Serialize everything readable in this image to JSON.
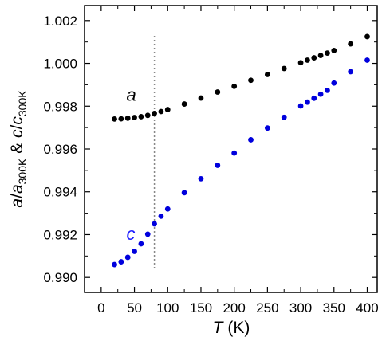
{
  "chart_data": {
    "type": "scatter",
    "xlabel": {
      "var": "T",
      "unit": " (K)"
    },
    "ylabel": {
      "parts": [
        {
          "t": "a",
          "italic": true
        },
        {
          "t": "/"
        },
        {
          "t": "a",
          "italic": true
        },
        {
          "t": "300K",
          "sub": true
        },
        {
          "t": " & "
        },
        {
          "t": "c",
          "italic": true
        },
        {
          "t": "/"
        },
        {
          "t": "c",
          "italic": true
        },
        {
          "t": "300K",
          "sub": true
        }
      ]
    },
    "xlim": [
      -25,
      415
    ],
    "ylim": [
      0.9893,
      1.0027
    ],
    "xticks": [
      0,
      50,
      100,
      150,
      200,
      250,
      300,
      350,
      400
    ],
    "yticks": [
      "0.990",
      "0.992",
      "0.994",
      "0.996",
      "0.998",
      "1.000",
      "1.002"
    ],
    "grid": false,
    "reference_line": {
      "x": 80,
      "style": "dotted",
      "color": "#888888"
    },
    "series": [
      {
        "label": "a",
        "color": "#000000",
        "label_color": "#000000",
        "label_at": {
          "x": 38,
          "y": 0.99825
        },
        "points": [
          [
            20,
            0.9974
          ],
          [
            30,
            0.99741
          ],
          [
            40,
            0.99744
          ],
          [
            50,
            0.99747
          ],
          [
            60,
            0.99751
          ],
          [
            70,
            0.99757
          ],
          [
            80,
            0.99766
          ],
          [
            90,
            0.99775
          ],
          [
            100,
            0.99784
          ],
          [
            125,
            0.9981
          ],
          [
            150,
            0.99838
          ],
          [
            175,
            0.99866
          ],
          [
            200,
            0.99893
          ],
          [
            225,
            0.99921
          ],
          [
            250,
            0.99948
          ],
          [
            275,
            0.99976
          ],
          [
            300,
            1.00003
          ],
          [
            310,
            1.00015
          ],
          [
            320,
            1.00026
          ],
          [
            330,
            1.00037
          ],
          [
            340,
            1.00048
          ],
          [
            350,
            1.0006
          ],
          [
            375,
            1.00091
          ],
          [
            400,
            1.00125
          ]
        ]
      },
      {
        "label": "c",
        "color": "#0000dd",
        "label_color": "#1a1aff",
        "label_at": {
          "x": 38,
          "y": 0.99175
        },
        "points": [
          [
            20,
            0.9906
          ],
          [
            30,
            0.99073
          ],
          [
            40,
            0.99094
          ],
          [
            50,
            0.99122
          ],
          [
            60,
            0.99157
          ],
          [
            70,
            0.99202
          ],
          [
            80,
            0.9925
          ],
          [
            90,
            0.99286
          ],
          [
            100,
            0.9932
          ],
          [
            125,
            0.99396
          ],
          [
            150,
            0.99461
          ],
          [
            175,
            0.99524
          ],
          [
            200,
            0.99581
          ],
          [
            225,
            0.99643
          ],
          [
            250,
            0.99698
          ],
          [
            275,
            0.99748
          ],
          [
            300,
            0.99801
          ],
          [
            310,
            0.99819
          ],
          [
            320,
            0.99837
          ],
          [
            330,
            0.99856
          ],
          [
            340,
            0.99874
          ],
          [
            350,
            0.99908
          ],
          [
            375,
            0.99961
          ],
          [
            400,
            1.00015
          ]
        ]
      }
    ]
  }
}
